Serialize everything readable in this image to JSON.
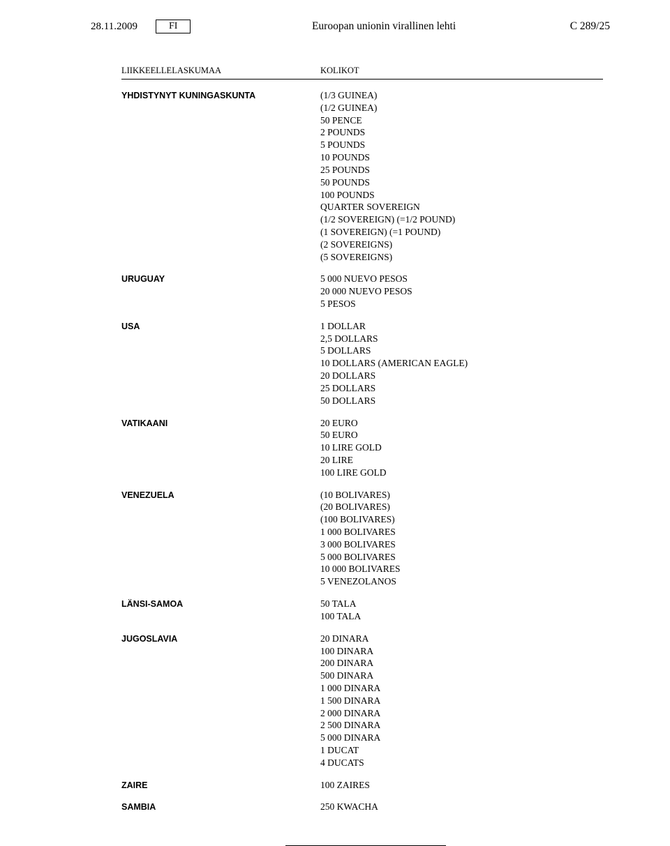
{
  "header": {
    "date": "28.11.2009",
    "lang": "FI",
    "title": "Euroopan unionin virallinen lehti",
    "page_ref": "C 289/25"
  },
  "columns": {
    "left": "LIIKKEELLELASKUMAA",
    "right": "KOLIKOT"
  },
  "rows": [
    {
      "country": "YHDISTYNYT KUNINGASKUNTA",
      "coins": [
        "(1/3 GUINEA)",
        "(1/2 GUINEA)",
        "50 PENCE",
        "2 POUNDS",
        "5 POUNDS",
        "10 POUNDS",
        "25 POUNDS",
        "50 POUNDS",
        "100 POUNDS",
        "QUARTER SOVEREIGN",
        "(1/2 SOVEREIGN) (=1/2 POUND)",
        "(1 SOVEREIGN) (=1 POUND)",
        "(2 SOVEREIGNS)",
        "(5 SOVEREIGNS)"
      ]
    },
    {
      "country": "URUGUAY",
      "coins": [
        "5 000 NUEVO PESOS",
        "20 000 NUEVO PESOS",
        "5 PESOS"
      ]
    },
    {
      "country": "USA",
      "coins": [
        "1 DOLLAR",
        "2,5 DOLLARS",
        "5 DOLLARS",
        "10 DOLLARS (AMERICAN EAGLE)",
        "20 DOLLARS",
        "25 DOLLARS",
        "50 DOLLARS"
      ]
    },
    {
      "country": "VATIKAANI",
      "coins": [
        "20 EURO",
        "50 EURO",
        "10 LIRE GOLD",
        "20 LIRE",
        "100 LIRE GOLD"
      ]
    },
    {
      "country": "VENEZUELA",
      "coins": [
        "(10 BOLIVARES)",
        "(20 BOLIVARES)",
        "(100 BOLIVARES)",
        "1 000 BOLIVARES",
        "3 000 BOLIVARES",
        "5 000 BOLIVARES",
        "10 000 BOLIVARES",
        "5 VENEZOLANOS"
      ]
    },
    {
      "country": "LÄNSI-SAMOA",
      "coins": [
        "50 TALA",
        "100 TALA"
      ]
    },
    {
      "country": "JUGOSLAVIA",
      "coins": [
        "20 DINARA",
        "100 DINARA",
        "200 DINARA",
        "500 DINARA",
        "1 000 DINARA",
        "1 500 DINARA",
        "2 000 DINARA",
        "2 500 DINARA",
        "5 000 DINARA",
        "1 DUCAT",
        "4 DUCATS"
      ]
    },
    {
      "country": "ZAIRE",
      "coins": [
        "100 ZAIRES"
      ]
    },
    {
      "country": "SAMBIA",
      "coins": [
        "250 KWACHA"
      ]
    }
  ]
}
